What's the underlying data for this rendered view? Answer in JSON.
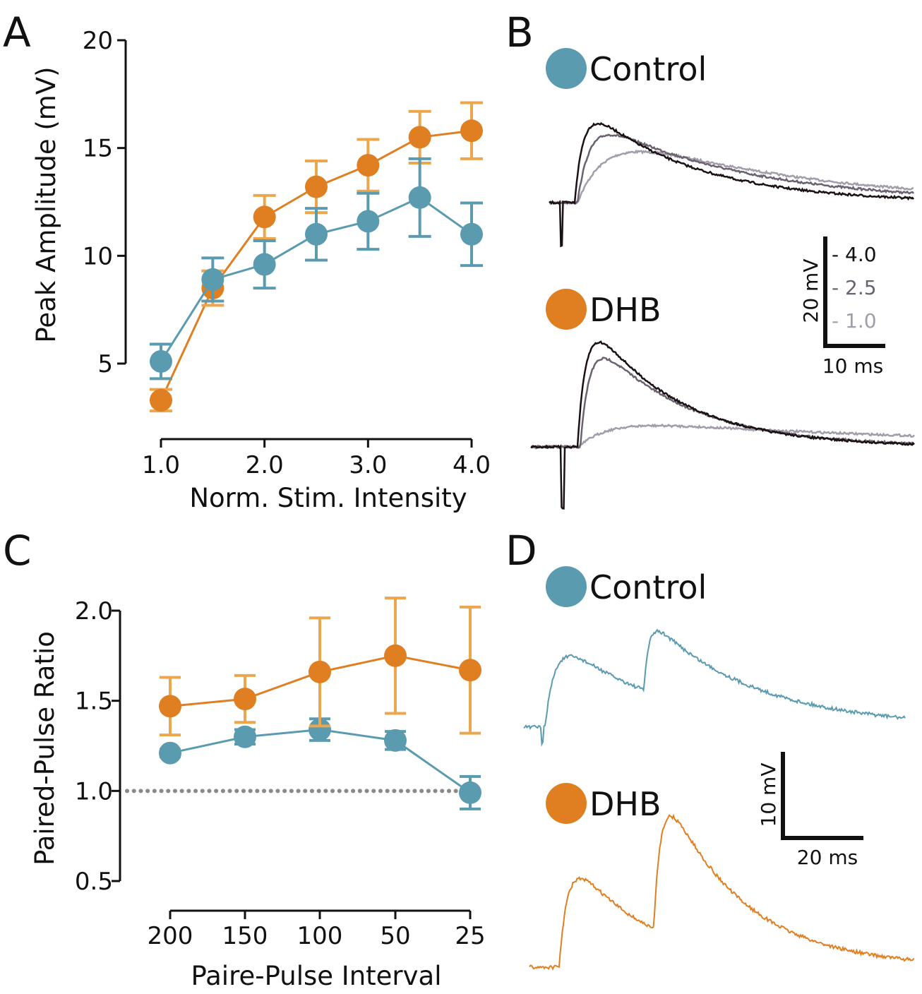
{
  "panels": {
    "A": "A",
    "B": "B",
    "C": "C",
    "D": "D"
  },
  "colors": {
    "control": "#5a9bb0",
    "dhb": "#e07f22",
    "dhb_error": "#eba64e",
    "trace_4_0": "#1b1115",
    "trace_2_5": "#6b6270",
    "trace_1_0": "#a39dab",
    "reference_line": "#8a8a8a"
  },
  "chart_data": [
    {
      "panel": "A",
      "type": "line",
      "xlabel": "Norm. Stim. Intensity",
      "ylabel": "Peak Amplitude (mV)",
      "xlim": [
        1.0,
        4.0
      ],
      "ylim": [
        5,
        20
      ],
      "xticks": [
        "1.0",
        "2.0",
        "3.0",
        "4.0"
      ],
      "yticks": [
        "5",
        "10",
        "15",
        "20"
      ],
      "x": [
        1.0,
        1.5,
        2.0,
        2.5,
        3.0,
        3.5,
        4.0
      ],
      "series": [
        {
          "key": "control",
          "values": [
            5.1,
            8.9,
            9.6,
            11.0,
            11.6,
            12.7,
            11.0
          ],
          "error": [
            0.8,
            1.0,
            1.1,
            1.2,
            1.3,
            1.8,
            1.45
          ]
        },
        {
          "key": "dhb",
          "values": [
            3.3,
            8.5,
            11.8,
            13.2,
            14.2,
            15.5,
            15.8
          ],
          "error": [
            0.5,
            0.8,
            1.0,
            1.2,
            1.2,
            1.2,
            1.3
          ]
        }
      ]
    },
    {
      "panel": "C",
      "type": "line",
      "xlabel": "Paire-Pulse Interval",
      "ylabel": "Paired-Pulse Ratio",
      "ylim": [
        0.5,
        2.0
      ],
      "categories": [
        "200",
        "150",
        "100",
        "50",
        "25"
      ],
      "yticks": [
        "0.5",
        "1.0",
        "1.5",
        "2.0"
      ],
      "reference_line": 1.0,
      "series": [
        {
          "key": "control",
          "values": [
            1.21,
            1.3,
            1.34,
            1.28,
            0.99
          ],
          "error": [
            0.02,
            0.04,
            0.06,
            0.05,
            0.09
          ]
        },
        {
          "key": "dhb",
          "values": [
            1.47,
            1.51,
            1.66,
            1.75,
            1.67
          ],
          "error": [
            0.16,
            0.13,
            0.3,
            0.32,
            0.35
          ]
        }
      ]
    }
  ],
  "panel_b": {
    "legend_control": "Control",
    "legend_dhb": "DHB",
    "scale_y": "20 mV",
    "scale_x": "10 ms",
    "intensity_labels": [
      "- 4.0",
      "- 2.5",
      "- 1.0"
    ]
  },
  "panel_d": {
    "legend_control": "Control",
    "legend_dhb": "DHB",
    "scale_y": "10 mV",
    "scale_x": "20 ms"
  }
}
